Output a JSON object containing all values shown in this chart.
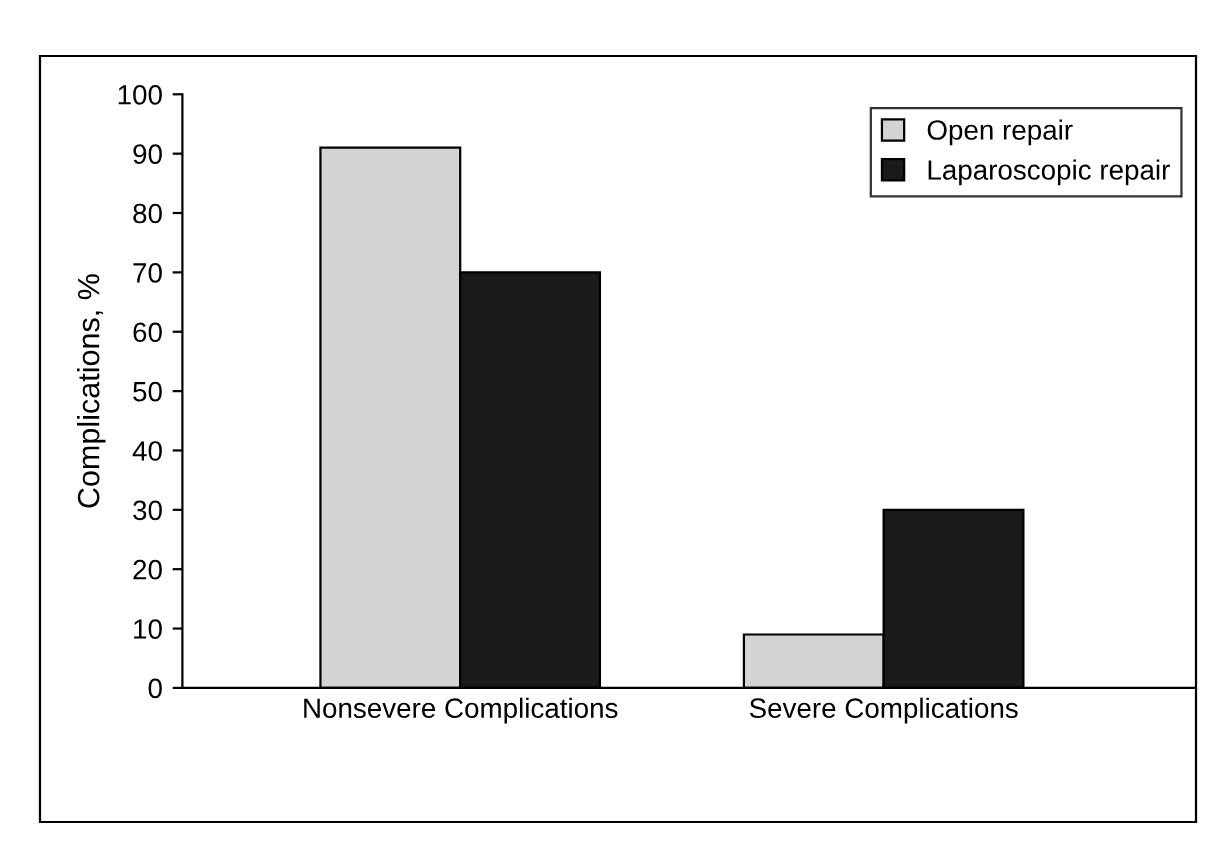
{
  "chart_data": {
    "type": "bar",
    "ylabel": "Complications, %",
    "categories": [
      "Nonsevere Complications",
      "Severe Complications"
    ],
    "series": [
      {
        "name": "Open repair",
        "color": "#d3d3d3",
        "values": [
          91,
          9
        ]
      },
      {
        "name": "Laparoscopic repair",
        "color": "#1a1a1a",
        "values": [
          70,
          30
        ]
      }
    ],
    "ylim": [
      0,
      100
    ],
    "yticks": [
      0,
      10,
      20,
      30,
      40,
      50,
      60,
      70,
      80,
      90,
      100
    ],
    "grid": false,
    "legend": "top right"
  }
}
